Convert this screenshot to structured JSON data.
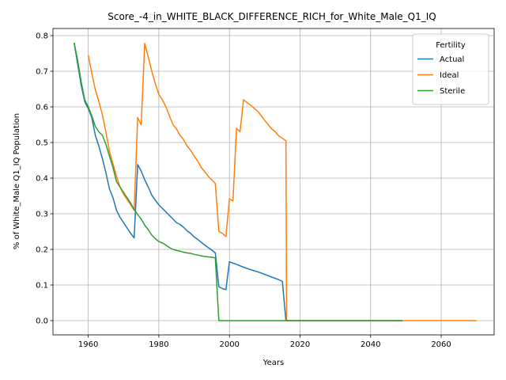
{
  "chart_data": {
    "type": "line",
    "title": "Score_-4_in_WHITE_BLACK_DIFFERENCE_RICH_for_White_Male_Q1_IQ",
    "xlabel": "Years",
    "ylabel": "% of White_Male Q1_IQ Population",
    "xlim": [
      1950,
      2075
    ],
    "ylim": [
      -0.04,
      0.82
    ],
    "xticks": [
      1960,
      1980,
      2000,
      2020,
      2040,
      2060
    ],
    "yticks": [
      0.0,
      0.1,
      0.2,
      0.3,
      0.4,
      0.5,
      0.6,
      0.7,
      0.8
    ],
    "ytick_labels": [
      "0.0",
      "0.1",
      "0.2",
      "0.3",
      "0.4",
      "0.5",
      "0.6",
      "0.7",
      "0.8"
    ],
    "grid": true,
    "legend": {
      "title": "Fertility",
      "placement": "top-right"
    },
    "series": [
      {
        "name": "Actual",
        "color": "#1f77b4",
        "points": [
          [
            1956,
            0.78
          ],
          [
            1957,
            0.72
          ],
          [
            1958,
            0.66
          ],
          [
            1959,
            0.615
          ],
          [
            1960,
            0.595
          ],
          [
            1961,
            0.57
          ],
          [
            1962,
            0.52
          ],
          [
            1963,
            0.49
          ],
          [
            1964,
            0.455
          ],
          [
            1965,
            0.415
          ],
          [
            1966,
            0.37
          ],
          [
            1967,
            0.345
          ],
          [
            1968,
            0.31
          ],
          [
            1969,
            0.29
          ],
          [
            1970,
            0.275
          ],
          [
            1971,
            0.26
          ],
          [
            1972,
            0.245
          ],
          [
            1973,
            0.232
          ],
          [
            1974,
            0.438
          ],
          [
            1975,
            0.42
          ],
          [
            1976,
            0.395
          ],
          [
            1977,
            0.375
          ],
          [
            1978,
            0.352
          ],
          [
            1979,
            0.338
          ],
          [
            1980,
            0.325
          ],
          [
            1981,
            0.315
          ],
          [
            1982,
            0.305
          ],
          [
            1983,
            0.295
          ],
          [
            1984,
            0.285
          ],
          [
            1985,
            0.275
          ],
          [
            1986,
            0.27
          ],
          [
            1987,
            0.262
          ],
          [
            1988,
            0.252
          ],
          [
            1989,
            0.245
          ],
          [
            1990,
            0.235
          ],
          [
            1991,
            0.228
          ],
          [
            1992,
            0.22
          ],
          [
            1993,
            0.212
          ],
          [
            1994,
            0.205
          ],
          [
            1995,
            0.198
          ],
          [
            1996,
            0.19
          ],
          [
            1997,
            0.095
          ],
          [
            1998,
            0.09
          ],
          [
            1999,
            0.087
          ],
          [
            2000,
            0.165
          ],
          [
            2002,
            0.158
          ],
          [
            2004,
            0.15
          ],
          [
            2006,
            0.143
          ],
          [
            2008,
            0.137
          ],
          [
            2010,
            0.13
          ],
          [
            2012,
            0.122
          ],
          [
            2014,
            0.115
          ],
          [
            2015,
            0.11
          ],
          [
            2016,
            0.0
          ],
          [
            2020,
            0.0
          ],
          [
            2030,
            0.0
          ],
          [
            2040,
            0.0
          ],
          [
            2049,
            0.0
          ]
        ]
      },
      {
        "name": "Ideal",
        "color": "#ff7f0e",
        "points": [
          [
            1960,
            0.745
          ],
          [
            1961,
            0.695
          ],
          [
            1962,
            0.648
          ],
          [
            1963,
            0.615
          ],
          [
            1964,
            0.578
          ],
          [
            1965,
            0.53
          ],
          [
            1966,
            0.475
          ],
          [
            1967,
            0.44
          ],
          [
            1968,
            0.405
          ],
          [
            1969,
            0.375
          ],
          [
            1970,
            0.355
          ],
          [
            1971,
            0.34
          ],
          [
            1972,
            0.325
          ],
          [
            1973,
            0.31
          ],
          [
            1974,
            0.57
          ],
          [
            1975,
            0.55
          ],
          [
            1976,
            0.778
          ],
          [
            1977,
            0.74
          ],
          [
            1978,
            0.7
          ],
          [
            1979,
            0.665
          ],
          [
            1980,
            0.635
          ],
          [
            1981,
            0.62
          ],
          [
            1982,
            0.6
          ],
          [
            1983,
            0.575
          ],
          [
            1984,
            0.55
          ],
          [
            1985,
            0.538
          ],
          [
            1986,
            0.52
          ],
          [
            1987,
            0.508
          ],
          [
            1988,
            0.49
          ],
          [
            1989,
            0.478
          ],
          [
            1990,
            0.462
          ],
          [
            1991,
            0.448
          ],
          [
            1992,
            0.43
          ],
          [
            1993,
            0.418
          ],
          [
            1994,
            0.405
          ],
          [
            1995,
            0.395
          ],
          [
            1996,
            0.385
          ],
          [
            1997,
            0.25
          ],
          [
            1998,
            0.245
          ],
          [
            1999,
            0.236
          ],
          [
            2000,
            0.342
          ],
          [
            2001,
            0.336
          ],
          [
            2002,
            0.54
          ],
          [
            2003,
            0.53
          ],
          [
            2004,
            0.62
          ],
          [
            2005,
            0.612
          ],
          [
            2006,
            0.605
          ],
          [
            2007,
            0.596
          ],
          [
            2008,
            0.588
          ],
          [
            2009,
            0.575
          ],
          [
            2010,
            0.562
          ],
          [
            2011,
            0.55
          ],
          [
            2012,
            0.538
          ],
          [
            2013,
            0.53
          ],
          [
            2014,
            0.518
          ],
          [
            2015,
            0.512
          ],
          [
            2016,
            0.505
          ],
          [
            2016.2,
            0.0
          ],
          [
            2020,
            0.0
          ],
          [
            2040,
            0.0
          ],
          [
            2060,
            0.0
          ],
          [
            2070,
            0.0
          ]
        ]
      },
      {
        "name": "Sterile",
        "color": "#2ca02c",
        "points": [
          [
            1956,
            0.78
          ],
          [
            1957,
            0.73
          ],
          [
            1958,
            0.67
          ],
          [
            1959,
            0.62
          ],
          [
            1960,
            0.6
          ],
          [
            1961,
            0.575
          ],
          [
            1962,
            0.545
          ],
          [
            1963,
            0.53
          ],
          [
            1964,
            0.52
          ],
          [
            1965,
            0.495
          ],
          [
            1966,
            0.462
          ],
          [
            1967,
            0.43
          ],
          [
            1968,
            0.39
          ],
          [
            1969,
            0.375
          ],
          [
            1970,
            0.36
          ],
          [
            1971,
            0.345
          ],
          [
            1972,
            0.33
          ],
          [
            1973,
            0.312
          ],
          [
            1974,
            0.298
          ],
          [
            1975,
            0.285
          ],
          [
            1976,
            0.268
          ],
          [
            1977,
            0.255
          ],
          [
            1978,
            0.24
          ],
          [
            1979,
            0.23
          ],
          [
            1980,
            0.222
          ],
          [
            1981,
            0.218
          ],
          [
            1982,
            0.212
          ],
          [
            1983,
            0.205
          ],
          [
            1984,
            0.2
          ],
          [
            1985,
            0.197
          ],
          [
            1986,
            0.195
          ],
          [
            1987,
            0.192
          ],
          [
            1988,
            0.19
          ],
          [
            1989,
            0.189
          ],
          [
            1990,
            0.186
          ],
          [
            1991,
            0.184
          ],
          [
            1992,
            0.182
          ],
          [
            1993,
            0.18
          ],
          [
            1994,
            0.179
          ],
          [
            1995,
            0.178
          ],
          [
            1996,
            0.176
          ],
          [
            1997,
            0.0
          ],
          [
            2000,
            0.0
          ],
          [
            2010,
            0.0
          ],
          [
            2020,
            0.0
          ],
          [
            2030,
            0.0
          ],
          [
            2040,
            0.0
          ],
          [
            2049,
            0.0
          ]
        ]
      }
    ]
  }
}
